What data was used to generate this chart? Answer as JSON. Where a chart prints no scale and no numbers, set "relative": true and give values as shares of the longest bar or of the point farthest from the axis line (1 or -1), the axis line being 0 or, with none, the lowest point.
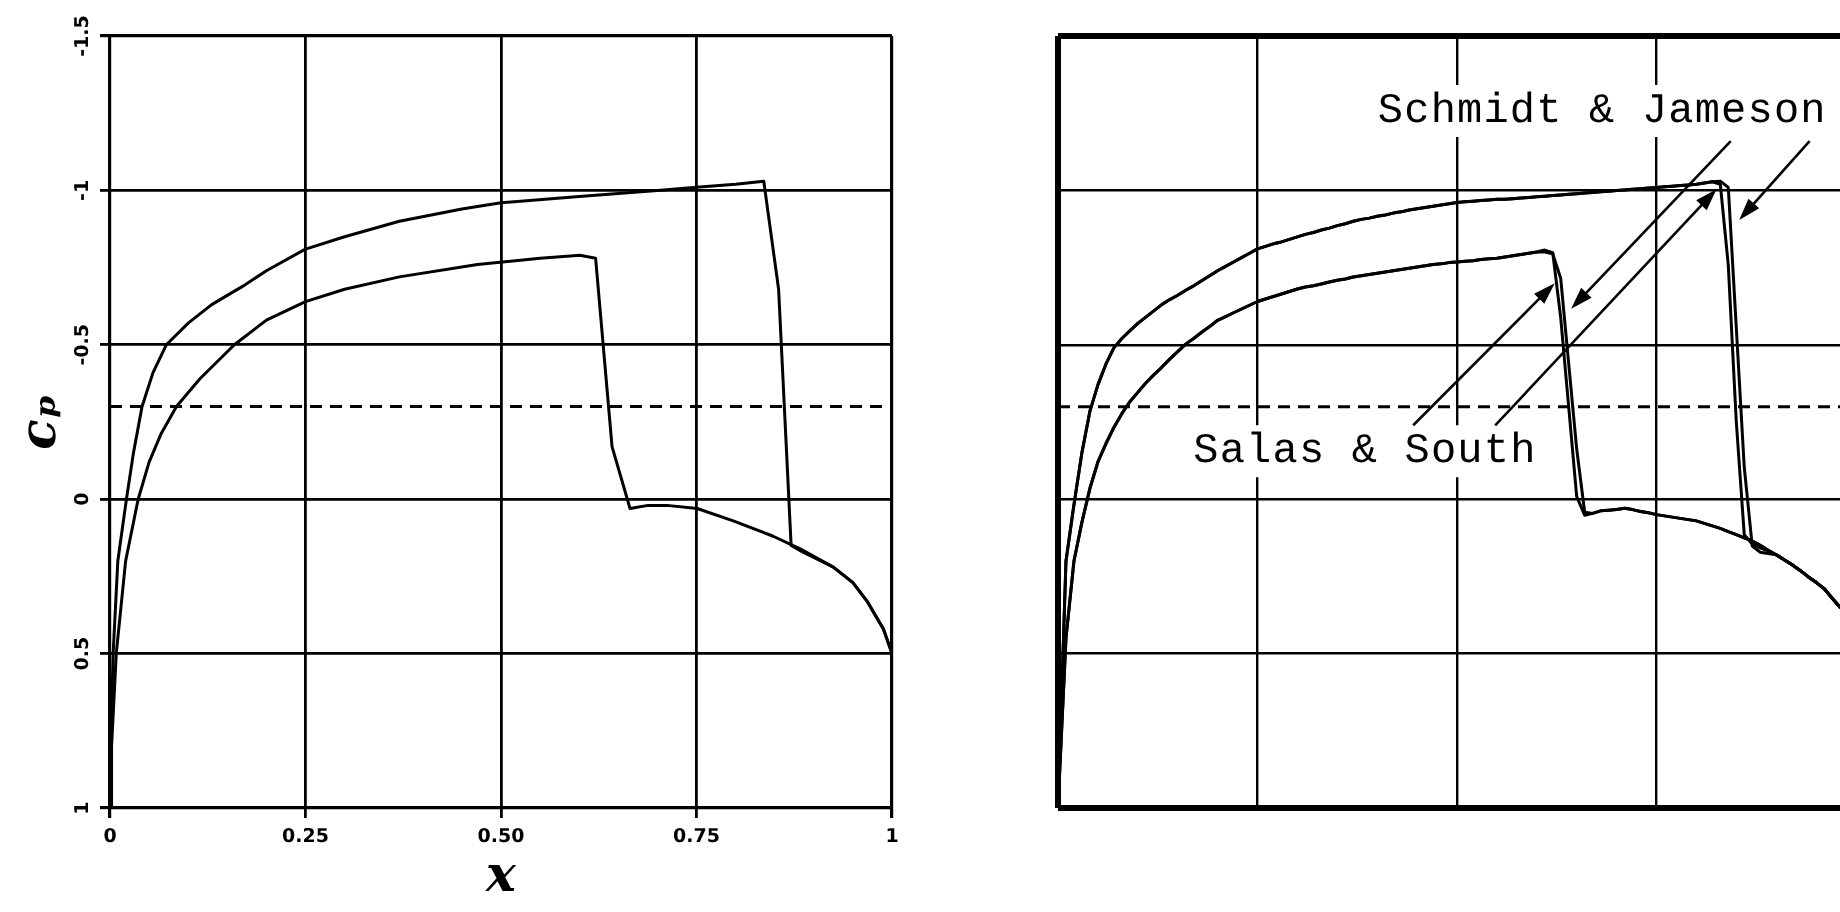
{
  "chart_data": [
    {
      "type": "line",
      "xlabel": "x",
      "ylabel": "cₚ",
      "xlim": [
        0,
        1
      ],
      "ylim": [
        1,
        -1.5
      ],
      "xticks": [
        0,
        0.25,
        {
          "value": 0.5,
          "label": "0.50"
        },
        0.75,
        1
      ],
      "yticks": [
        -1.5,
        -1,
        -0.5,
        0,
        0.5,
        1
      ],
      "grid": true,
      "marker": "none",
      "ref_lines": [
        {
          "axis": "y",
          "value": -0.3,
          "line_style": "dashed"
        }
      ],
      "series": [
        {
          "color": "#000000",
          "x": [
            0,
            0.001,
            0.004,
            0.01,
            0.021,
            0.03,
            0.041,
            0.055,
            0.072,
            0.1,
            0.13,
            0.17,
            0.2,
            0.25,
            0.3,
            0.37,
            0.45,
            0.5,
            0.6,
            0.7,
            0.75,
            0.8,
            0.836,
            0.855,
            0.871,
            0.885,
            0.925,
            0.95,
            0.968,
            0.989,
            1
          ],
          "values": [
            1,
            0.8,
            0.5,
            0.2,
            0,
            -0.15,
            -0.3,
            -0.41,
            -0.5,
            -0.57,
            -0.63,
            -0.69,
            -0.74,
            -0.81,
            -0.85,
            -0.9,
            -0.94,
            -0.96,
            -0.98,
            -1,
            -1.01,
            -1.02,
            -1.03,
            -0.68,
            0.15,
            0.17,
            0.22,
            0.27,
            0.33,
            0.42,
            0.5
          ]
        },
        {
          "color": "#000000",
          "x": [
            0,
            0.002,
            0.008,
            0.02,
            0.036,
            0.05,
            0.065,
            0.085,
            0.115,
            0.159,
            0.2,
            0.25,
            0.3,
            0.37,
            0.47,
            0.55,
            0.601,
            0.621,
            0.642,
            0.665,
            0.688,
            0.712,
            0.751,
            0.797,
            0.848,
            0.882,
            0.925,
            0.95,
            0.968,
            0.989,
            1
          ],
          "values": [
            1,
            0.8,
            0.5,
            0.2,
            0,
            -0.12,
            -0.21,
            -0.3,
            -0.39,
            -0.5,
            -0.58,
            -0.64,
            -0.68,
            -0.72,
            -0.76,
            -0.78,
            -0.79,
            -0.78,
            -0.17,
            0.03,
            0.02,
            0.02,
            0.03,
            0.07,
            0.12,
            0.16,
            0.22,
            0.27,
            0.33,
            0.42,
            0.5
          ]
        }
      ]
    },
    {
      "type": "line",
      "relative": true,
      "categories": [
        null,
        null,
        null,
        null,
        null,
        null,
        null,
        null,
        null,
        null,
        null,
        null,
        null,
        null,
        null,
        null,
        null,
        null,
        null,
        null,
        null,
        null,
        null,
        null,
        null,
        null,
        null,
        null,
        null,
        null,
        null,
        null,
        null,
        null,
        null,
        null,
        null,
        null,
        null,
        null,
        null,
        null,
        null,
        null,
        null,
        null,
        null,
        null,
        null,
        null,
        null,
        null,
        null,
        null,
        null,
        null,
        null,
        null,
        null,
        null,
        null,
        null,
        null,
        null,
        null,
        null,
        null,
        null,
        null,
        null,
        null,
        null,
        null,
        null,
        null,
        null,
        null,
        null,
        null,
        null,
        null,
        null,
        null,
        null,
        null,
        null,
        null,
        null,
        null,
        null,
        null,
        null,
        null,
        null,
        null,
        null,
        null,
        null,
        null
      ],
      "tick_labels": false,
      "grid": true,
      "marker": "none",
      "ref_lines": [
        {
          "axis": "y",
          "value": 0.64,
          "line_style": "dashed"
        }
      ],
      "annotations": [
        "Schmidt & Jameson",
        "Salas & South"
      ],
      "series": [
        {
          "color": "#000000",
          "values": [
            0,
            0.394,
            0.484,
            0.567,
            0.633,
            0.675,
            0.708,
            0.734,
            0.749,
            0.761,
            0.773,
            0.783,
            0.793,
            0.803,
            0.811,
            0.818,
            0.826,
            0.833,
            0.841,
            0.849,
            0.857,
            0.864,
            0.871,
            0.878,
            0.885,
            0.892,
            0.896,
            0.9,
            0.903,
            0.907,
            0.911,
            0.915,
            0.918,
            0.922,
            0.925,
            0.929,
            0.932,
            0.936,
            0.939,
            0.941,
            0.944,
            0.946,
            0.949,
            0.951,
            0.954,
            0.956,
            0.958,
            0.96,
            0.962,
            0.964,
            0.966,
            0.967,
            0.968,
            0.969,
            0.97,
            0.971,
            0.971,
            0.972,
            0.973,
            0.974,
            0.975,
            0.976,
            0.977,
            0.978,
            0.979,
            0.98,
            0.981,
            0.982,
            0.983,
            0.984,
            0.985,
            0.986,
            0.987,
            0.988,
            0.989,
            0.99,
            0.991,
            0.992,
            0.993,
            0.994,
            0.995,
            0.997,
            0.999,
            0.995,
            0.866,
            0.617,
            0.436,
            0.421,
            0.415,
            0.41,
            0.404,
            0.396,
            0.388,
            0.379,
            0.369,
            0.36,
            0.35,
            0.335,
            0.32
          ]
        },
        {
          "color": "#000000",
          "values": [
            0,
            0.394,
            0.484,
            0.567,
            0.633,
            0.675,
            0.708,
            0.734,
            0.749,
            0.761,
            0.773,
            0.783,
            0.793,
            0.803,
            0.811,
            0.818,
            0.826,
            0.833,
            0.841,
            0.849,
            0.857,
            0.864,
            0.871,
            0.878,
            0.885,
            0.892,
            0.896,
            0.9,
            0.903,
            0.907,
            0.911,
            0.915,
            0.918,
            0.922,
            0.925,
            0.929,
            0.932,
            0.936,
            0.939,
            0.941,
            0.944,
            0.946,
            0.949,
            0.951,
            0.954,
            0.956,
            0.958,
            0.96,
            0.962,
            0.964,
            0.966,
            0.967,
            0.968,
            0.969,
            0.97,
            0.971,
            0.971,
            0.972,
            0.973,
            0.974,
            0.975,
            0.976,
            0.977,
            0.978,
            0.979,
            0.98,
            0.981,
            0.982,
            0.983,
            0.984,
            0.985,
            0.986,
            0.987,
            0.988,
            0.989,
            0.99,
            0.991,
            0.992,
            0.993,
            0.994,
            0.995,
            0.997,
            0.999,
            1,
            0.99,
            0.767,
            0.544,
            0.418,
            0.408,
            0.406,
            0.404,
            0.396,
            0.388,
            0.379,
            0.369,
            0.36,
            0.35,
            0.335,
            0.32
          ]
        },
        {
          "color": "#000000",
          "values": [
            0,
            0.271,
            0.394,
            0.456,
            0.51,
            0.552,
            0.581,
            0.607,
            0.629,
            0.648,
            0.663,
            0.678,
            0.691,
            0.703,
            0.716,
            0.728,
            0.74,
            0.749,
            0.759,
            0.768,
            0.778,
            0.784,
            0.79,
            0.796,
            0.802,
            0.808,
            0.812,
            0.816,
            0.82,
            0.824,
            0.828,
            0.831,
            0.833,
            0.836,
            0.839,
            0.842,
            0.844,
            0.847,
            0.849,
            0.851,
            0.853,
            0.855,
            0.857,
            0.859,
            0.861,
            0.863,
            0.865,
            0.867,
            0.868,
            0.87,
            0.871,
            0.872,
            0.873,
            0.875,
            0.876,
            0.877,
            0.879,
            0.881,
            0.883,
            0.885,
            0.887,
            0.89,
            0.886,
            0.782,
            0.64,
            0.497,
            0.467,
            0.47,
            0.474,
            0.475,
            0.476,
            0.478,
            0.476,
            0.473,
            0.471,
            0.468,
            0.466,
            0.464,
            0.462,
            0.46,
            0.458,
            0.454,
            0.45,
            0.446,
            0.441,
            0.436,
            0.431,
            0.426,
            0.419,
            0.411,
            0.404,
            0.396,
            0.388,
            0.379,
            0.369,
            0.36,
            0.35,
            0.335,
            0.32
          ]
        },
        {
          "color": "#000000",
          "values": [
            0,
            0.271,
            0.394,
            0.456,
            0.51,
            0.552,
            0.581,
            0.607,
            0.629,
            0.648,
            0.663,
            0.678,
            0.691,
            0.703,
            0.716,
            0.728,
            0.74,
            0.749,
            0.759,
            0.768,
            0.778,
            0.784,
            0.79,
            0.796,
            0.802,
            0.808,
            0.812,
            0.816,
            0.82,
            0.824,
            0.828,
            0.831,
            0.833,
            0.836,
            0.839,
            0.842,
            0.844,
            0.847,
            0.849,
            0.851,
            0.853,
            0.855,
            0.857,
            0.859,
            0.861,
            0.863,
            0.865,
            0.867,
            0.868,
            0.87,
            0.871,
            0.872,
            0.873,
            0.875,
            0.876,
            0.877,
            0.879,
            0.881,
            0.883,
            0.885,
            0.887,
            0.887,
            0.884,
            0.845,
            0.709,
            0.573,
            0.472,
            0.47,
            0.474,
            0.475,
            0.476,
            0.478,
            0.476,
            0.473,
            0.471,
            0.468,
            0.466,
            0.464,
            0.462,
            0.46,
            0.458,
            0.454,
            0.45,
            0.446,
            0.441,
            0.436,
            0.431,
            0.426,
            0.419,
            0.411,
            0.404,
            0.396,
            0.388,
            0.379,
            0.369,
            0.36,
            0.35,
            0.335,
            0.32
          ]
        }
      ]
    }
  ]
}
